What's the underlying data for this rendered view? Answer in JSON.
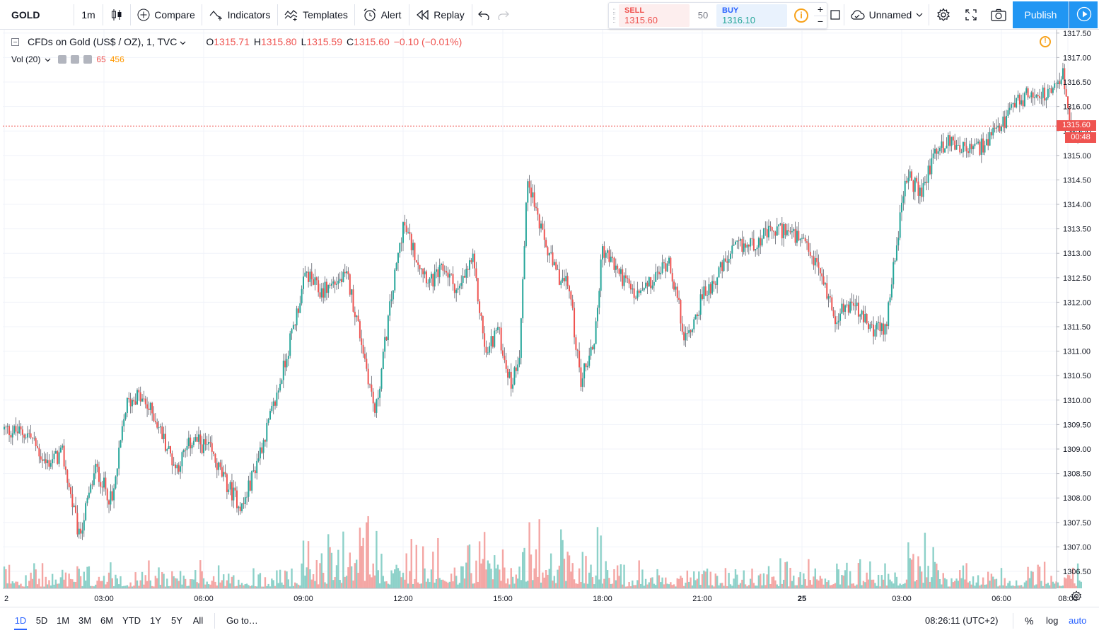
{
  "toolbar": {
    "symbol": "GOLD",
    "interval": "1m",
    "compare_label": "Compare",
    "indicators_label": "Indicators",
    "templates_label": "Templates",
    "alert_label": "Alert",
    "replay_label": "Replay",
    "layout_name": "Unnamed",
    "publish_label": "Publish"
  },
  "trade": {
    "sell_label": "SELL",
    "sell_price": "1315.60",
    "quantity": "50",
    "buy_label": "BUY",
    "buy_price": "1316.10",
    "plus": "+",
    "minus": "−"
  },
  "legend": {
    "title": "CFDs on Gold (US$ / OZ), 1, TVC",
    "open_key": "O",
    "open": "1315.71",
    "high_key": "H",
    "high": "1315.80",
    "low_key": "L",
    "low": "1315.59",
    "close_key": "C",
    "close": "1315.60",
    "change": "−0.10 (−0.01%)"
  },
  "volume_legend": {
    "label": "Vol (20)",
    "value": "65",
    "ma_value": "456"
  },
  "price_badge": {
    "last": "1315.60",
    "countdown": "00:48"
  },
  "bottom_bar": {
    "ranges": [
      "1D",
      "5D",
      "1M",
      "3M",
      "6M",
      "YTD",
      "1Y",
      "5Y",
      "All"
    ],
    "active_range": "1D",
    "goto_label": "Go to…",
    "clock": "08:26:11 (UTC+2)",
    "percent_label": "%",
    "log_label": "log",
    "auto_label": "auto"
  },
  "colors": {
    "up": "#26a69a",
    "down": "#ef5350",
    "vol_up": "#8dd1c9",
    "vol_down": "#f4a6a4",
    "grid": "#f0f3fa",
    "accent": "#2196f3"
  },
  "chart_data": {
    "type": "candlestick",
    "symbol": "CFDs on Gold (US$ / OZ)",
    "timeframe": "1",
    "ylim": [
      1306.2,
      1317.6
    ],
    "y_ticks": [
      "1317.50",
      "1317.00",
      "1316.50",
      "1316.00",
      "1315.50",
      "1315.00",
      "1314.50",
      "1314.00",
      "1313.50",
      "1313.00",
      "1312.50",
      "1312.00",
      "1311.50",
      "1311.00",
      "1310.50",
      "1310.00",
      "1309.50",
      "1309.00",
      "1308.50",
      "1308.00",
      "1307.50",
      "1307.00",
      "1306.50"
    ],
    "x_ticks": [
      "2",
      "03:00",
      "06:00",
      "09:00",
      "12:00",
      "15:00",
      "18:00",
      "21:00",
      "25",
      "03:00",
      "06:00",
      "08:00"
    ],
    "price_path": [
      [
        "00:00",
        1309.4
      ],
      [
        "00:45",
        1309.3
      ],
      [
        "01:15",
        1308.7
      ],
      [
        "01:45",
        1308.9
      ],
      [
        "02:15",
        1307.2
      ],
      [
        "02:45",
        1308.6
      ],
      [
        "03:15",
        1307.9
      ],
      [
        "03:40",
        1309.9
      ],
      [
        "04:00",
        1310.1
      ],
      [
        "04:30",
        1309.7
      ],
      [
        "05:10",
        1308.6
      ],
      [
        "05:40",
        1309.2
      ],
      [
        "06:10",
        1309.0
      ],
      [
        "06:40",
        1308.3
      ],
      [
        "07:10",
        1307.8
      ],
      [
        "07:40",
        1308.9
      ],
      [
        "08:10",
        1310.0
      ],
      [
        "08:40",
        1311.4
      ],
      [
        "09:05",
        1312.6
      ],
      [
        "09:30",
        1312.2
      ],
      [
        "09:55",
        1312.4
      ],
      [
        "10:20",
        1312.5
      ],
      [
        "10:45",
        1311.2
      ],
      [
        "11:10",
        1309.7
      ],
      [
        "11:35",
        1311.8
      ],
      [
        "12:00",
        1313.6
      ],
      [
        "12:25",
        1312.9
      ],
      [
        "12:50",
        1312.4
      ],
      [
        "13:15",
        1312.7
      ],
      [
        "13:40",
        1312.2
      ],
      [
        "14:05",
        1312.9
      ],
      [
        "14:30",
        1310.9
      ],
      [
        "14:50",
        1311.5
      ],
      [
        "15:15",
        1310.3
      ],
      [
        "15:30",
        1311.0
      ],
      [
        "15:45",
        1314.6
      ],
      [
        "16:10",
        1313.4
      ],
      [
        "16:35",
        1312.6
      ],
      [
        "17:00",
        1312.3
      ],
      [
        "17:20",
        1310.4
      ],
      [
        "17:45",
        1311.2
      ],
      [
        "18:00",
        1313.1
      ],
      [
        "18:30",
        1312.6
      ],
      [
        "19:00",
        1312.1
      ],
      [
        "19:30",
        1312.4
      ],
      [
        "20:00",
        1312.9
      ],
      [
        "20:30",
        1311.2
      ],
      [
        "21:00",
        1312.1
      ],
      [
        "21:30",
        1312.6
      ],
      [
        "22:00",
        1313.1
      ],
      [
        "22:30",
        1313.2
      ],
      [
        "23:00",
        1313.4
      ],
      [
        "23:30",
        1313.5
      ],
      [
        "00:00",
        1313.2
      ],
      [
        "00:30",
        1312.7
      ],
      [
        "01:00",
        1311.7
      ],
      [
        "01:30",
        1312.0
      ],
      [
        "02:00",
        1311.5
      ],
      [
        "02:30",
        1311.4
      ],
      [
        "02:50",
        1313.2
      ],
      [
        "03:10",
        1314.6
      ],
      [
        "03:35",
        1314.2
      ],
      [
        "04:00",
        1315.1
      ],
      [
        "04:30",
        1315.3
      ],
      [
        "05:00",
        1315.1
      ],
      [
        "05:30",
        1315.2
      ],
      [
        "06:00",
        1315.6
      ],
      [
        "06:30",
        1316.1
      ],
      [
        "07:00",
        1316.3
      ],
      [
        "07:30",
        1316.2
      ],
      [
        "07:50",
        1316.7
      ],
      [
        "08:10",
        1315.3
      ],
      [
        "08:26",
        1315.6
      ]
    ],
    "last": 1315.6,
    "volume_legend": {
      "vol": 65,
      "ma": 456
    }
  }
}
